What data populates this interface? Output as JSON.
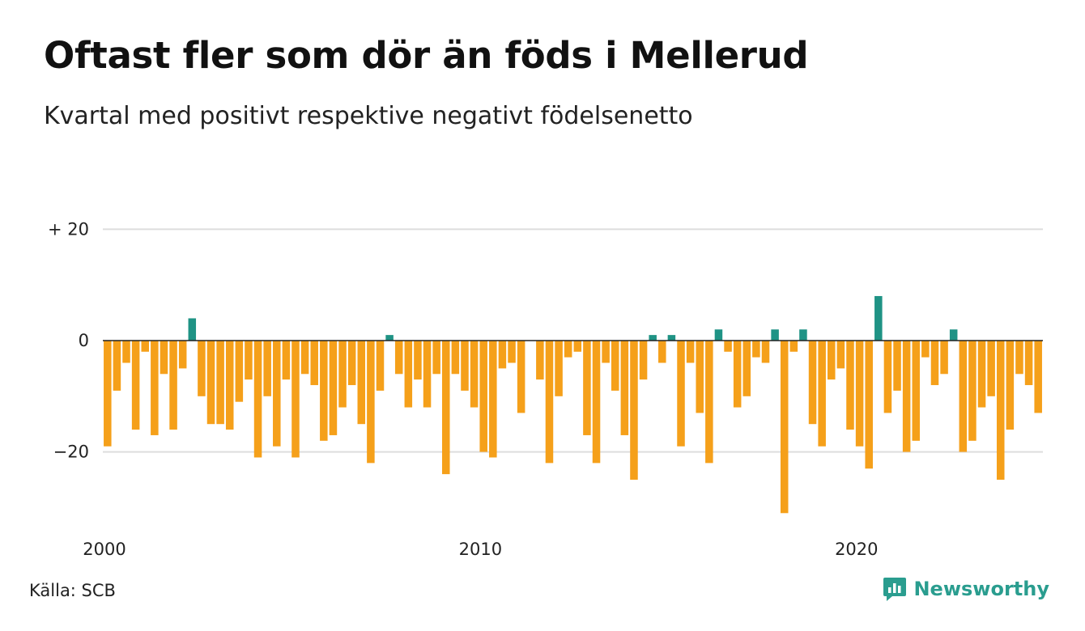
{
  "chart_data": {
    "type": "bar",
    "title": "Oftast fler som dör än föds i Mellerud",
    "subtitle": "Kvartal med positivt respektive negativt födelsenetto",
    "source": "Källa: SCB",
    "brand": "Newsworthy",
    "x_start": 2000,
    "x_ticks": [
      "2000",
      "2010",
      "2020"
    ],
    "y_ticks": [
      {
        "value": 20,
        "label": "+ 20"
      },
      {
        "value": 0,
        "label": "0"
      },
      {
        "value": -20,
        "label": "−20"
      }
    ],
    "ylim": [
      -32,
      20
    ],
    "colors": {
      "positive": "#1f9385",
      "negative": "#f5a01a",
      "grid": "#dddddd",
      "zero": "#222222"
    },
    "values": [
      -19,
      -9,
      -4,
      -16,
      -2,
      -17,
      -6,
      -16,
      -5,
      4,
      -10,
      -15,
      -15,
      -16,
      -11,
      -7,
      -21,
      -10,
      -19,
      -7,
      -21,
      -6,
      -8,
      -18,
      -17,
      -12,
      -8,
      -15,
      -22,
      -9,
      1,
      -6,
      -12,
      -7,
      -12,
      -6,
      -24,
      -6,
      -9,
      -12,
      -20,
      -21,
      -5,
      -4,
      -13,
      0,
      -7,
      -22,
      -10,
      -3,
      -2,
      -17,
      -22,
      -4,
      -9,
      -17,
      -25,
      -7,
      1,
      -4,
      1,
      -19,
      -4,
      -13,
      -22,
      2,
      -2,
      -12,
      -10,
      -3,
      -4,
      2,
      -31,
      -2,
      2,
      -15,
      -19,
      -7,
      -5,
      -16,
      -19,
      -23,
      8,
      -13,
      -9,
      -20,
      -18,
      -3,
      -8,
      -6,
      2,
      -20,
      -18,
      -12,
      -10,
      -25,
      -16,
      -6,
      -8,
      -13
    ]
  }
}
